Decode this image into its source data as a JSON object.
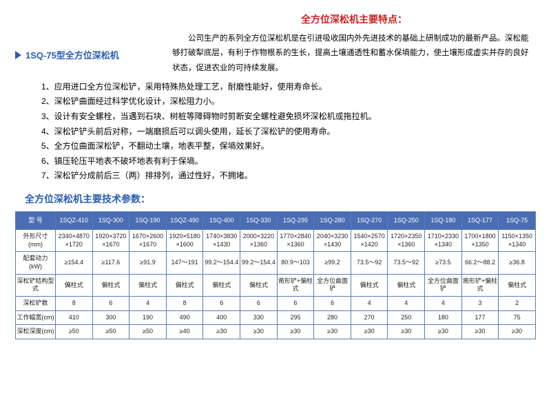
{
  "mainTitle": "全方位深松机主要特点：",
  "intro": "公司生产的系列全方位深松机是在引进吸收国内外先进技术的基础上研制成功的最新产品。深松能 够打破犁底层，有利于作物根系的生长，提高土壤通透性和蓄水保墒能力，使土壤形成虚实并存的良好状态，促进农业的可持续发展。",
  "modelLabel": "1SQ-75型全方位深松机",
  "features": [
    "1、应用进口全方位深松铲，采用特殊热处理工艺，耐磨性能好，使用寿命长。",
    "2、深松铲曲面经过科学优化设计，深松阻力小。",
    "3、设计有安全螺栓，当遇到石块、树桩等障碍物时剪断安全螺栓避免损坏深松机或拖拉机。",
    "4、深松铲铲头前后对称，一端磨损后可以调头使用，延长了深松铲的使用寿命。",
    "5、全方位曲面深松铲，不翻动土壤，地表平整，保墒效果好。",
    "6、镇压轮压平地表不破坏地表有利于保墒。",
    "7、深松铲分成前后三（两）排排列，通过性好，不拥堵。"
  ],
  "paramsTitle": "全方位深松机主要技术参数：",
  "headers": [
    "型 号",
    "1SQZ-410",
    "1SQ-300",
    "1SQ-190",
    "1SQZ-490",
    "1SQ-400",
    "1SQ-330",
    "1SQ-295",
    "1SQ-280",
    "1SQ-270",
    "1SQ-250",
    "1SQ-180",
    "1SQ-177",
    "1SQ-75"
  ],
  "rows": [
    {
      "label": "外形尺寸(mm)",
      "cells": [
        "2340×4870×1720",
        "1920×3720×1670",
        "1670×2600×1670",
        "1920×5180×1600",
        "1740×3830×1430",
        "2000×3220×1360",
        "1770×2840×1360",
        "2040×3230×1430",
        "1540×2570×1420",
        "1720×2350×1360",
        "1710×2330×1340",
        "1700×1800×1350",
        "1150×1350×1340"
      ]
    },
    {
      "label": "配套动力 (kW)",
      "cells": [
        "≥154.4",
        "≥117.6",
        "≥91.9",
        "147～191",
        "99.2～154.4",
        "99.2～154.4",
        "80.9～103",
        "≥99.2",
        "73.5～92",
        "73.5～92",
        "≥73.5",
        "66.2～88.2",
        "≥36.8"
      ]
    },
    {
      "label": "深松铲结构型式",
      "cells": [
        "偏柱式",
        "偏柱式",
        "偏柱式",
        "偏柱式",
        "偏柱式",
        "偏柱式",
        "凿形铲+偏柱式",
        "全方位曲面铲",
        "偏柱式",
        "偏柱式",
        "全方位曲面铲",
        "凿形铲+偏柱式",
        "偏柱式"
      ]
    },
    {
      "label": "深松铲数",
      "cells": [
        "8",
        "6",
        "4",
        "8",
        "6",
        "6",
        "6",
        "6",
        "4",
        "4",
        "4",
        "3",
        "2"
      ]
    },
    {
      "label": "工作幅宽(cm)",
      "cells": [
        "410",
        "300",
        "190",
        "490",
        "400",
        "330",
        "295",
        "280",
        "270",
        "250",
        "180",
        "177",
        "75"
      ]
    },
    {
      "label": "深松深度(cm)",
      "cells": [
        "≥50",
        "≥50",
        "≥50",
        "≥40",
        "≥30",
        "≥30",
        "≥30",
        "≥30",
        "≥30",
        "≥30",
        "≥30",
        "≥30",
        "≥30"
      ]
    }
  ]
}
